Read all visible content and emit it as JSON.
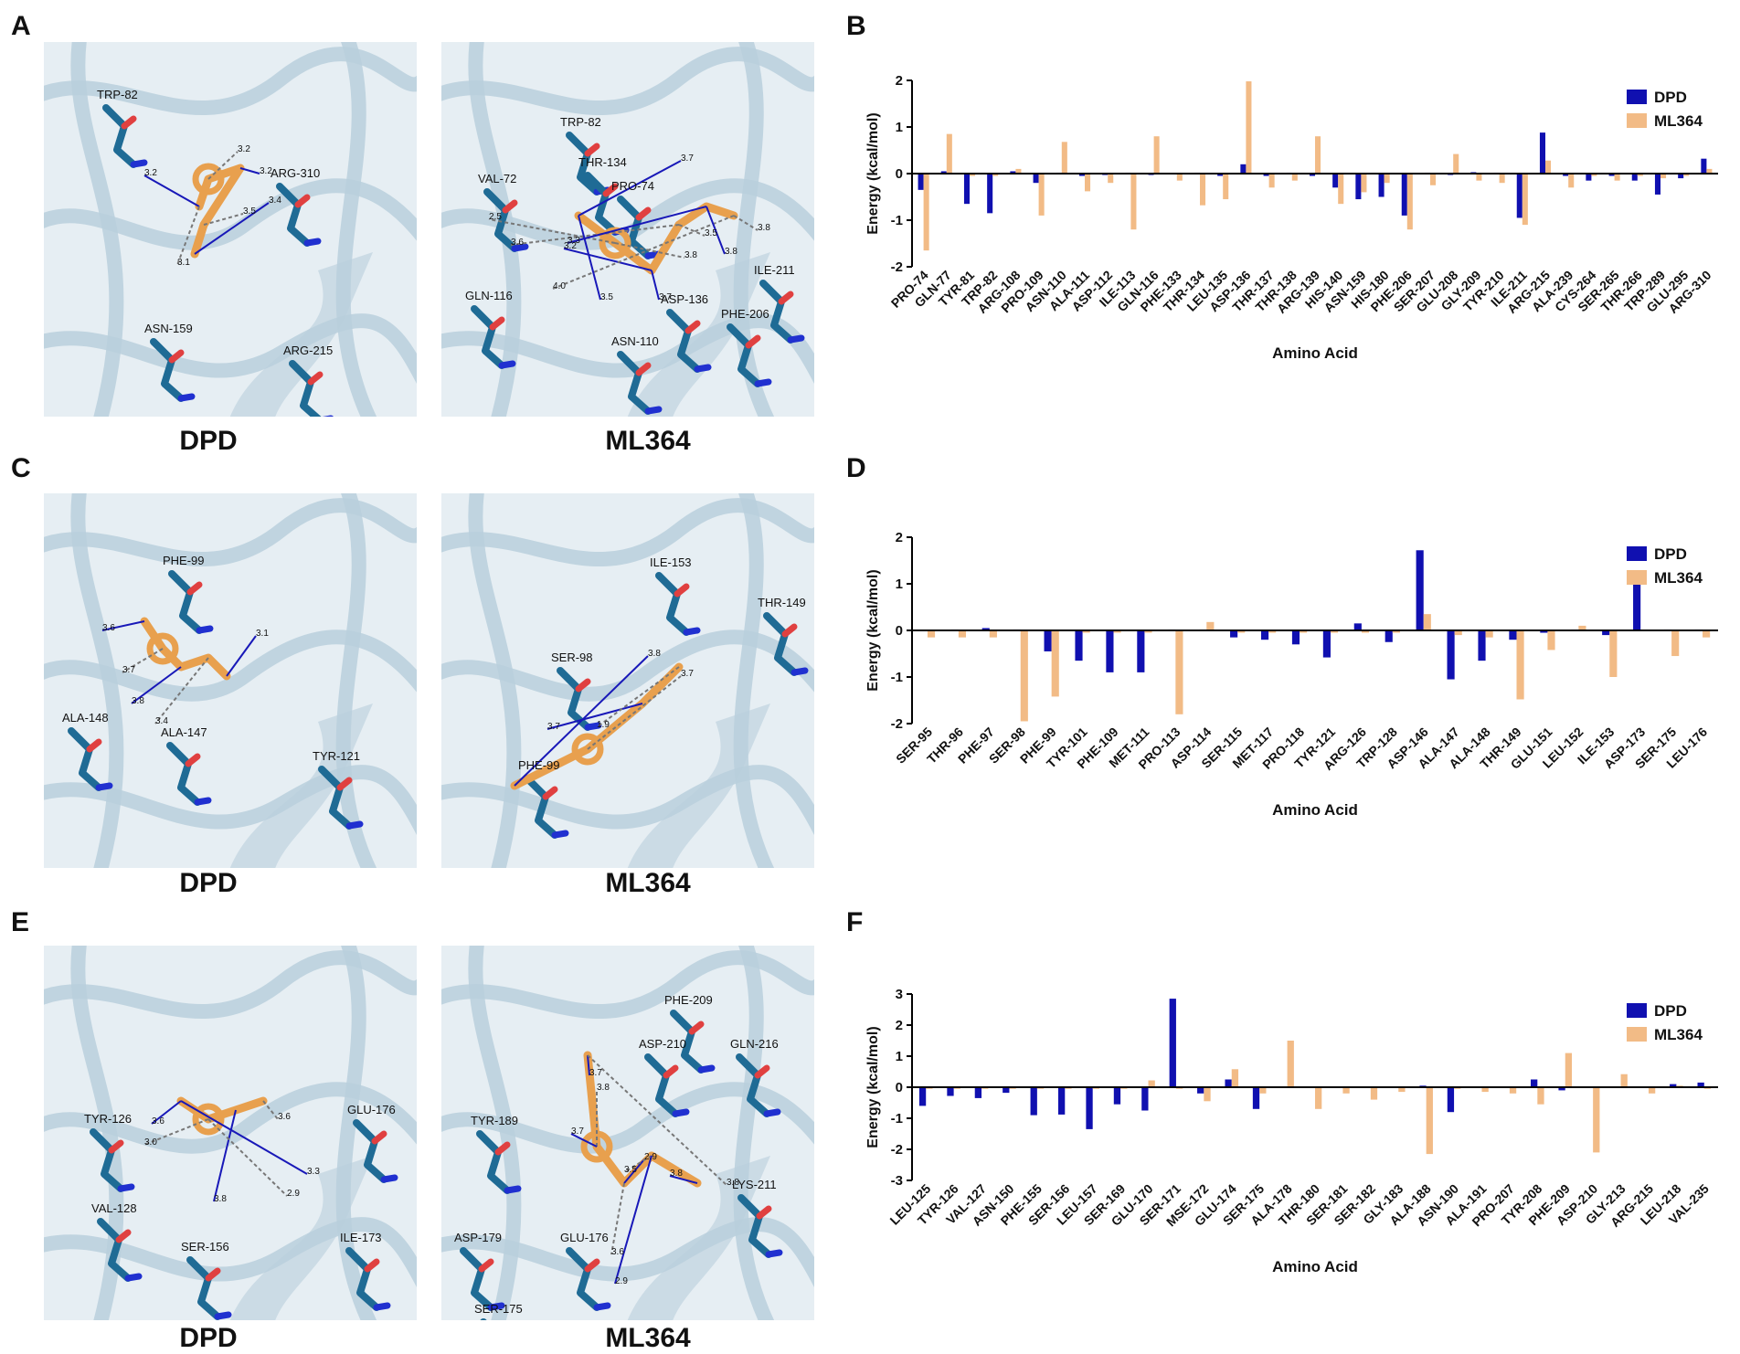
{
  "panels": {
    "A": "A",
    "B": "B",
    "C": "C",
    "D": "D",
    "E": "E",
    "F": "F"
  },
  "structures": [
    {
      "id": "A-left",
      "caption": "DPD",
      "residues": [
        "TRP-82",
        "ARG-310",
        "ASN-159",
        "ARG-215"
      ],
      "distances": [
        "3.2",
        "3.2",
        "3.2",
        "3.5",
        "3.4",
        "3.1"
      ]
    },
    {
      "id": "A-right",
      "caption": "ML364",
      "residues": [
        "TRP-82",
        "THR-134",
        "VAL-72",
        "PRO-74",
        "GLN-116",
        "ASP-136",
        "ASN-110",
        "PHE-206",
        "ILE-211"
      ],
      "distances": [
        "3.7",
        "2.5",
        "3.2",
        "3.6",
        "3.3",
        "4.0",
        "3.5",
        "3.8",
        "3.7",
        "3.5",
        "3.8",
        "3.8"
      ]
    },
    {
      "id": "C-left",
      "caption": "DPD",
      "residues": [
        "PHE-99",
        "ALA-148",
        "ALA-147",
        "TYR-121"
      ],
      "distances": [
        "3.6",
        "3.7",
        "3.8",
        "3.4",
        "3.1"
      ]
    },
    {
      "id": "C-right",
      "caption": "ML364",
      "residues": [
        "ILE-153",
        "THR-149",
        "SER-98",
        "PHE-99"
      ],
      "distances": [
        "3.8",
        "3.7",
        "3.7",
        "1.9"
      ]
    },
    {
      "id": "E-left",
      "caption": "DPD",
      "residues": [
        "TYR-126",
        "VAL-128",
        "SER-156",
        "GLU-176",
        "ILE-173"
      ],
      "distances": [
        "3.6",
        "3.0",
        "3.8",
        "3.6",
        "3.3",
        "2.9"
      ]
    },
    {
      "id": "E-right",
      "caption": "ML364",
      "residues": [
        "PHE-209",
        "ASP-210",
        "GLN-216",
        "TYR-189",
        "LYS-211",
        "ASP-179",
        "GLU-176",
        "SER-175"
      ],
      "distances": [
        "3.7",
        "3.8",
        "2.9",
        "3.5",
        "3.8",
        "3.8",
        "3.7",
        "3.6",
        "2.9"
      ]
    }
  ],
  "colors": {
    "DPD": "#1010b0",
    "ML364": "#f2bb86",
    "protein": "#1f6b95",
    "cartoon": "#b9cfdc",
    "ligand": "#e8a04e"
  },
  "chart_data": [
    {
      "type": "bar",
      "panel": "B",
      "xlabel": "Amino Acid",
      "ylabel": "Energy (kcal/mol)",
      "ylim": [
        -2,
        2
      ],
      "yticks": [
        "2",
        "1",
        "0",
        "-1",
        "-2"
      ],
      "legend": "top-right",
      "categories": [
        "PRO-74",
        "GLN-77",
        "TYR-81",
        "TRP-82",
        "ARG-108",
        "PRO-109",
        "ASN-110",
        "ALA-111",
        "ASP-112",
        "ILE-113",
        "GLN-116",
        "PHE-133",
        "THR-134",
        "LEU-135",
        "ASP-136",
        "THR-137",
        "THR-138",
        "ARG-139",
        "HIS-140",
        "ASN-159",
        "HIS-180",
        "PHE-206",
        "SER-207",
        "GLU-208",
        "GLY-209",
        "TYR-210",
        "ILE-211",
        "ARG-215",
        "ALA-239",
        "CYS-264",
        "SER-265",
        "THR-266",
        "TRP-289",
        "GLU-295",
        "ARG-310"
      ],
      "series": [
        {
          "name": "DPD",
          "values": [
            -0.35,
            0.05,
            -0.65,
            -0.85,
            0.05,
            -0.2,
            0.02,
            -0.05,
            -0.03,
            0.02,
            -0.03,
            -0.02,
            0.02,
            -0.05,
            0.2,
            -0.05,
            0.02,
            -0.05,
            -0.3,
            -0.55,
            -0.5,
            -0.9,
            0.02,
            -0.03,
            0.03,
            0.02,
            -0.95,
            0.88,
            -0.05,
            -0.15,
            -0.05,
            -0.15,
            -0.45,
            -0.1,
            0.32
          ]
        },
        {
          "name": "ML364",
          "values": [
            -1.65,
            0.85,
            -0.05,
            -0.05,
            0.1,
            -0.9,
            0.68,
            -0.38,
            -0.2,
            -1.2,
            0.8,
            -0.15,
            -0.68,
            -0.55,
            1.98,
            -0.3,
            -0.15,
            0.8,
            -0.65,
            -0.4,
            -0.2,
            -1.2,
            -0.25,
            0.42,
            -0.15,
            -0.2,
            -1.1,
            0.28,
            -0.3,
            -0.05,
            -0.15,
            -0.05,
            -0.1,
            -0.05,
            0.1
          ]
        }
      ]
    },
    {
      "type": "bar",
      "panel": "D",
      "xlabel": "Amino Acid",
      "ylabel": "Energy (kcal/mol)",
      "ylim": [
        -2,
        2
      ],
      "yticks": [
        "2",
        "1",
        "0",
        "-1",
        "-2"
      ],
      "legend": "top-right",
      "categories": [
        "SER-95",
        "THR-96",
        "PHE-97",
        "SER-98",
        "PHE-99",
        "TYR-101",
        "PHE-109",
        "MET-111",
        "PRO-113",
        "ASP-114",
        "SER-115",
        "MET-117",
        "PRO-118",
        "TYR-121",
        "ARG-126",
        "TRP-128",
        "ASP-146",
        "ALA-147",
        "ALA-148",
        "THR-149",
        "GLU-151",
        "LEU-152",
        "ILE-153",
        "ASP-173",
        "SER-175",
        "LEU-176"
      ],
      "series": [
        {
          "name": "DPD",
          "values": [
            -0.02,
            0.02,
            0.05,
            0.02,
            -0.45,
            -0.65,
            -0.9,
            -0.9,
            0.02,
            0.02,
            -0.15,
            -0.2,
            -0.3,
            -0.58,
            0.15,
            -0.25,
            1.72,
            -1.05,
            -0.65,
            -0.2,
            -0.05,
            0.02,
            -0.1,
            1.15,
            0.02,
            0.02
          ]
        },
        {
          "name": "ML364",
          "values": [
            -0.15,
            -0.15,
            -0.15,
            -1.95,
            -1.42,
            -0.05,
            -0.05,
            -0.05,
            -1.8,
            0.18,
            -0.05,
            -0.05,
            -0.05,
            -0.05,
            -0.05,
            -0.05,
            0.35,
            -0.1,
            -0.15,
            -1.48,
            -0.42,
            0.1,
            -1.0,
            0.02,
            -0.55,
            -0.15
          ]
        }
      ]
    },
    {
      "type": "bar",
      "panel": "F",
      "xlabel": "Amino Acid",
      "ylabel": "Energy (kcal/mol)",
      "ylim": [
        -3,
        3
      ],
      "yticks": [
        "3",
        "2",
        "1",
        "0",
        "-1",
        "-2",
        "-3"
      ],
      "legend": "top-right",
      "categories": [
        "LEU-125",
        "TYR-126",
        "VAL-127",
        "ASN-150",
        "PHE-155",
        "SER-156",
        "LEU-157",
        "SER-169",
        "GLU-170",
        "SER-171",
        "MSE-172",
        "GLU-174",
        "SER-175",
        "ALA-178",
        "THR-180",
        "SER-181",
        "SER-182",
        "GLY-183",
        "ALA-188",
        "ASN-190",
        "ALA-191",
        "PRO-207",
        "TYR-208",
        "PHE-209",
        "ASP-210",
        "GLY-213",
        "ARG-215",
        "LEU-218",
        "VAL-235"
      ],
      "series": [
        {
          "name": "DPD",
          "values": [
            -0.6,
            -0.28,
            -0.35,
            -0.18,
            -0.9,
            -0.88,
            -1.35,
            -0.55,
            -0.75,
            2.85,
            -0.2,
            0.25,
            -0.7,
            0.02,
            0.02,
            0.02,
            0.02,
            0.02,
            0.05,
            -0.8,
            0.02,
            0.02,
            0.25,
            -0.1,
            0.02,
            0.02,
            0.02,
            0.1,
            0.15
          ]
        },
        {
          "name": "ML364",
          "values": [
            -0.05,
            -0.05,
            -0.05,
            -0.05,
            -0.05,
            -0.05,
            -0.05,
            -0.05,
            0.22,
            -0.05,
            -0.45,
            0.58,
            -0.2,
            1.5,
            -0.7,
            -0.2,
            -0.4,
            -0.15,
            -2.15,
            -0.05,
            -0.15,
            -0.2,
            -0.55,
            1.1,
            -2.1,
            0.42,
            -0.2,
            0.05,
            -0.05
          ]
        }
      ]
    }
  ]
}
